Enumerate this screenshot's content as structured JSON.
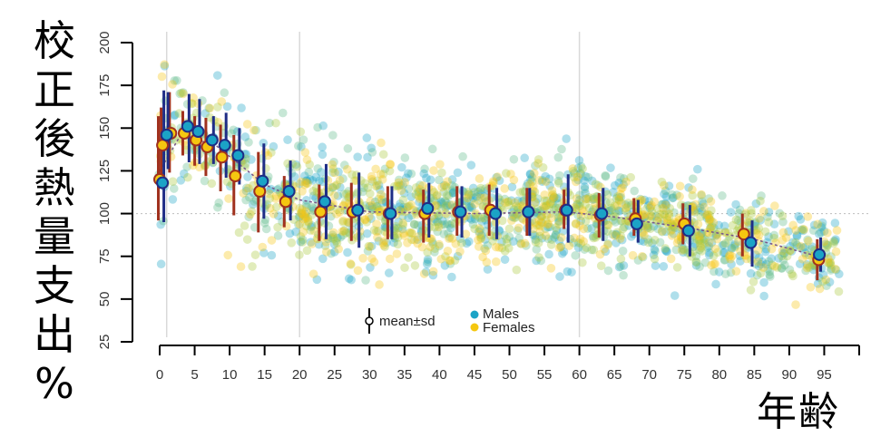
{
  "chart_data": {
    "type": "scatter",
    "title": "",
    "ylabel": "校正後熱量支出%",
    "xlabel": "年齢",
    "xlim": [
      0,
      100
    ],
    "ylim": [
      25,
      200
    ],
    "xticks": [
      0,
      5,
      10,
      15,
      20,
      25,
      30,
      35,
      40,
      45,
      50,
      55,
      60,
      65,
      70,
      75,
      80,
      85,
      90,
      95
    ],
    "yticks": [
      25,
      50,
      75,
      100,
      125,
      150,
      175,
      200
    ],
    "reference_line_y": 100,
    "vertical_gridlines_x": [
      1,
      20,
      60
    ],
    "legend": {
      "position": "bottom-center",
      "entries": [
        {
          "label": "mean±sd",
          "symbol": "open-circle-with-bar"
        },
        {
          "label": "Males",
          "color": "#1ba3c6"
        },
        {
          "label": "Females",
          "color": "#f5c710"
        }
      ]
    },
    "colors": {
      "males_fill": "#1ba3c6",
      "males_stroke": "#1f2d86",
      "females_fill": "#f5c710",
      "females_stroke": "#a0311e",
      "grid": "#d9d9d9",
      "ref_line": "#bdbdbd",
      "trend": "#7a5a8c"
    },
    "series": [
      {
        "name": "Males",
        "points": [
          {
            "age": 0.4,
            "mean": 118,
            "lo": 95,
            "hi": 172
          },
          {
            "age": 1.0,
            "mean": 146,
            "lo": 126,
            "hi": 171
          },
          {
            "age": 4.0,
            "mean": 151,
            "lo": 130,
            "hi": 170
          },
          {
            "age": 5.5,
            "mean": 148,
            "lo": 129,
            "hi": 167
          },
          {
            "age": 7.5,
            "mean": 143,
            "lo": 129,
            "hi": 157
          },
          {
            "age": 9.3,
            "mean": 140,
            "lo": 121,
            "hi": 159
          },
          {
            "age": 11.2,
            "mean": 134,
            "lo": 117,
            "hi": 150
          },
          {
            "age": 14.7,
            "mean": 119,
            "lo": 97,
            "hi": 141
          },
          {
            "age": 18.5,
            "mean": 113,
            "lo": 96,
            "hi": 131
          },
          {
            "age": 23.6,
            "mean": 107,
            "lo": 85,
            "hi": 129
          },
          {
            "age": 28.3,
            "mean": 102,
            "lo": 80,
            "hi": 124
          },
          {
            "age": 33.0,
            "mean": 100,
            "lo": 85,
            "hi": 116
          },
          {
            "age": 38.3,
            "mean": 103,
            "lo": 86,
            "hi": 118
          },
          {
            "age": 43.0,
            "mean": 101,
            "lo": 86,
            "hi": 116
          },
          {
            "age": 48.0,
            "mean": 100,
            "lo": 85,
            "hi": 115
          },
          {
            "age": 52.7,
            "mean": 101,
            "lo": 87,
            "hi": 115
          },
          {
            "age": 58.2,
            "mean": 102,
            "lo": 83,
            "hi": 123
          },
          {
            "age": 63.2,
            "mean": 100,
            "lo": 84,
            "hi": 115
          },
          {
            "age": 68.2,
            "mean": 94,
            "lo": 83,
            "hi": 108
          },
          {
            "age": 75.6,
            "mean": 90,
            "lo": 75,
            "hi": 105
          },
          {
            "age": 84.5,
            "mean": 83,
            "lo": 69,
            "hi": 96
          },
          {
            "age": 94.3,
            "mean": 76,
            "lo": 66,
            "hi": 86
          }
        ]
      },
      {
        "name": "Females",
        "points": [
          {
            "age": 0.0,
            "mean": 120,
            "lo": 96,
            "hi": 157
          },
          {
            "age": 0.4,
            "mean": 140,
            "lo": 118,
            "hi": 162
          },
          {
            "age": 1.6,
            "mean": 147,
            "lo": 124,
            "hi": 171
          },
          {
            "age": 3.5,
            "mean": 147,
            "lo": 134,
            "hi": 160
          },
          {
            "age": 5.2,
            "mean": 143,
            "lo": 128,
            "hi": 157
          },
          {
            "age": 6.8,
            "mean": 139,
            "lo": 122,
            "hi": 156
          },
          {
            "age": 8.9,
            "mean": 133,
            "lo": 113,
            "hi": 152
          },
          {
            "age": 10.8,
            "mean": 122,
            "lo": 99,
            "hi": 146
          },
          {
            "age": 14.3,
            "mean": 113,
            "lo": 89,
            "hi": 136
          },
          {
            "age": 18.0,
            "mean": 107,
            "lo": 92,
            "hi": 122
          },
          {
            "age": 23.0,
            "mean": 101,
            "lo": 84,
            "hi": 117
          },
          {
            "age": 27.6,
            "mean": 101,
            "lo": 84,
            "hi": 118
          },
          {
            "age": 32.8,
            "mean": 100,
            "lo": 85,
            "hi": 116
          },
          {
            "age": 37.9,
            "mean": 100,
            "lo": 83,
            "hi": 114
          },
          {
            "age": 42.7,
            "mean": 101,
            "lo": 87,
            "hi": 116
          },
          {
            "age": 47.3,
            "mean": 102,
            "lo": 87,
            "hi": 117
          },
          {
            "age": 52.7,
            "mean": 101,
            "lo": 87,
            "hi": 115
          },
          {
            "age": 58.0,
            "mean": 102,
            "lo": 91,
            "hi": 114
          },
          {
            "age": 63.0,
            "mean": 99,
            "lo": 86,
            "hi": 112
          },
          {
            "age": 68.0,
            "mean": 97,
            "lo": 87,
            "hi": 109
          },
          {
            "age": 75.0,
            "mean": 94,
            "lo": 82,
            "hi": 106
          },
          {
            "age": 83.5,
            "mean": 88,
            "lo": 75,
            "hi": 100
          },
          {
            "age": 94.2,
            "mean": 73,
            "lo": 61,
            "hi": 85
          }
        ]
      }
    ],
    "trend_line": [
      {
        "age": 0,
        "value": 125
      },
      {
        "age": 3,
        "value": 146
      },
      {
        "age": 8,
        "value": 140
      },
      {
        "age": 15,
        "value": 117
      },
      {
        "age": 20,
        "value": 108
      },
      {
        "age": 30,
        "value": 101
      },
      {
        "age": 45,
        "value": 100
      },
      {
        "age": 58,
        "value": 101
      },
      {
        "age": 65,
        "value": 98
      },
      {
        "age": 75,
        "value": 92
      },
      {
        "age": 85,
        "value": 85
      },
      {
        "age": 95,
        "value": 74
      }
    ]
  },
  "labels": {
    "ylabel_chars": [
      "校",
      "正",
      "後",
      "熱",
      "量",
      "支",
      "出",
      "%"
    ],
    "xlabel": "年齢"
  }
}
